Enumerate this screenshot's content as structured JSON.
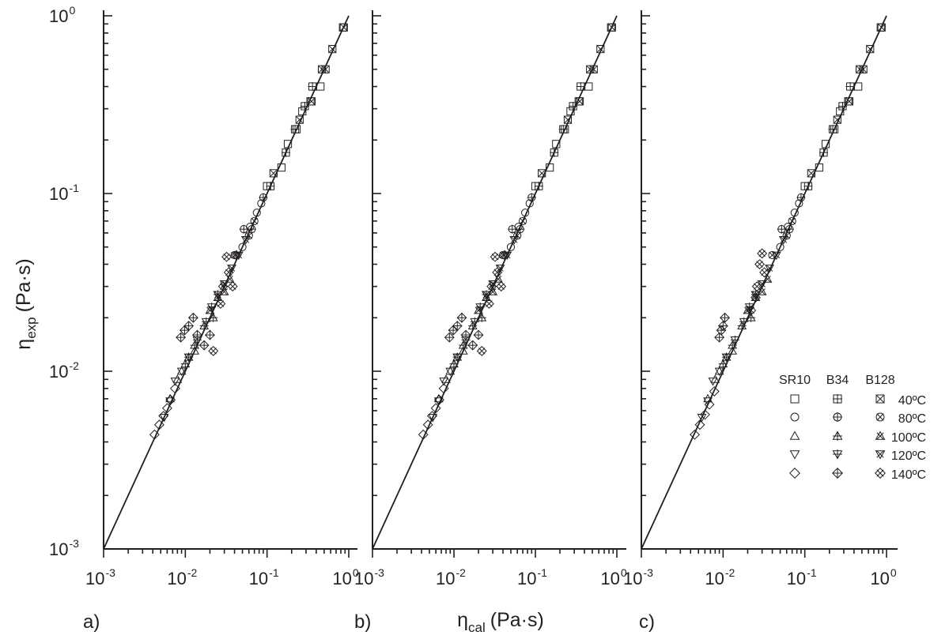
{
  "figure": {
    "y_axis_title": {
      "symbol": "η",
      "subscript": "exp",
      "unit": "(Pa·s)"
    },
    "x_axis_title": {
      "symbol": "η",
      "subscript": "cal",
      "unit": "(Pa·s)"
    },
    "panel_labels": [
      "a)",
      "b)",
      "c)"
    ],
    "tick_base": "10",
    "y_tick_exponents": [
      "0",
      "-1",
      "-2",
      "-3"
    ],
    "x_tick_exponents": [
      "-3",
      "-2",
      "-1",
      "0"
    ],
    "legend": {
      "columns": [
        "SR10",
        "B34",
        "B128"
      ],
      "rows": [
        "40ºC",
        "80ºC",
        "100ºC",
        "120ºC",
        "140ºC"
      ],
      "marker_shapes": [
        "square",
        "circle",
        "triangle-up",
        "triangle-down",
        "diamond"
      ],
      "column_styles": [
        "open",
        "plus",
        "cross"
      ]
    },
    "colors": {
      "ink": "#231f20",
      "background": "#ffffff"
    }
  },
  "chart_data": [
    {
      "type": "scatter",
      "panel": "a)",
      "xlabel": "ηcal (Pa·s)",
      "ylabel": "ηexp (Pa·s)",
      "xscale": "log",
      "yscale": "log",
      "xlim": [
        0.001,
        1.5
      ],
      "ylim": [
        0.001,
        1.0
      ],
      "fit_line": {
        "x": [
          0.001,
          1.0
        ],
        "y": [
          0.001,
          1.0
        ]
      },
      "series": [
        {
          "shape": "square",
          "style": "open",
          "x": [
            0.1,
            0.15,
            0.18,
            0.23,
            0.27,
            0.34,
            0.45,
            0.85
          ],
          "y": [
            0.11,
            0.14,
            0.19,
            0.23,
            0.29,
            0.33,
            0.4,
            0.86
          ]
        },
        {
          "shape": "square",
          "style": "plus",
          "x": [
            0.11,
            0.17,
            0.22,
            0.29,
            0.36
          ],
          "y": [
            0.11,
            0.17,
            0.23,
            0.31,
            0.4
          ]
        },
        {
          "shape": "square",
          "style": "cross",
          "x": [
            0.12,
            0.25,
            0.35,
            0.47,
            0.52,
            0.63,
            0.87
          ],
          "y": [
            0.13,
            0.26,
            0.33,
            0.5,
            0.5,
            0.65,
            0.86
          ]
        },
        {
          "shape": "circle",
          "style": "open",
          "x": [
            0.05,
            0.062,
            0.075,
            0.085
          ],
          "y": [
            0.05,
            0.065,
            0.078,
            0.088
          ]
        },
        {
          "shape": "circle",
          "style": "plus",
          "x": [
            0.052,
            0.065,
            0.09
          ],
          "y": [
            0.063,
            0.063,
            0.095
          ]
        },
        {
          "shape": "circle",
          "style": "cross",
          "x": [
            0.04,
            0.06,
            0.07
          ],
          "y": [
            0.045,
            0.058,
            0.07
          ]
        },
        {
          "shape": "triangle-up",
          "style": "open",
          "x": [
            0.0065,
            0.008,
            0.009,
            0.011,
            0.013
          ],
          "y": [
            0.007,
            0.009,
            0.01,
            0.012,
            0.013
          ]
        },
        {
          "shape": "triangle-up",
          "style": "plus",
          "x": [
            0.01,
            0.013,
            0.017,
            0.022
          ],
          "y": [
            0.011,
            0.014,
            0.018,
            0.02
          ]
        },
        {
          "shape": "triangle-up",
          "style": "cross",
          "x": [
            0.02,
            0.025,
            0.03,
            0.035
          ],
          "y": [
            0.022,
            0.026,
            0.028,
            0.033
          ]
        },
        {
          "shape": "triangle-down",
          "style": "open",
          "x": [
            0.0055,
            0.0065,
            0.0075,
            0.009,
            0.011
          ],
          "y": [
            0.0055,
            0.0068,
            0.0088,
            0.01,
            0.012
          ]
        },
        {
          "shape": "triangle-down",
          "style": "plus",
          "x": [
            0.011,
            0.014,
            0.018,
            0.021,
            0.025
          ],
          "y": [
            0.012,
            0.015,
            0.019,
            0.023,
            0.027
          ]
        },
        {
          "shape": "triangle-down",
          "style": "cross",
          "x": [
            0.025,
            0.03,
            0.037,
            0.045,
            0.055
          ],
          "y": [
            0.027,
            0.031,
            0.038,
            0.045,
            0.055
          ]
        },
        {
          "shape": "diamond",
          "style": "open",
          "x": [
            0.0042,
            0.0048,
            0.0054,
            0.006,
            0.0066,
            0.0075
          ],
          "y": [
            0.0044,
            0.005,
            0.0056,
            0.0062,
            0.0069,
            0.008
          ]
        },
        {
          "shape": "diamond",
          "style": "plus",
          "x": [
            0.0088,
            0.0098,
            0.011,
            0.0125,
            0.014,
            0.017,
            0.02
          ],
          "y": [
            0.0155,
            0.017,
            0.018,
            0.02,
            0.016,
            0.014,
            0.016
          ]
        },
        {
          "shape": "diamond",
          "style": "cross",
          "x": [
            0.022,
            0.027,
            0.029,
            0.032,
            0.034,
            0.038,
            0.042
          ],
          "y": [
            0.013,
            0.024,
            0.03,
            0.044,
            0.036,
            0.03,
            0.045
          ]
        }
      ]
    },
    {
      "type": "scatter",
      "panel": "b)",
      "xlabel": "ηcal (Pa·s)",
      "ylabel": "ηexp (Pa·s)",
      "xscale": "log",
      "yscale": "log",
      "xlim": [
        0.001,
        1.5
      ],
      "ylim": [
        0.001,
        1.0
      ],
      "fit_line": {
        "x": [
          0.001,
          1.0
        ],
        "y": [
          0.001,
          1.0
        ]
      },
      "series": [
        {
          "shape": "square",
          "style": "open",
          "x": [
            0.1,
            0.15,
            0.18,
            0.23,
            0.27,
            0.34,
            0.45,
            0.85
          ],
          "y": [
            0.11,
            0.14,
            0.19,
            0.23,
            0.29,
            0.33,
            0.4,
            0.86
          ]
        },
        {
          "shape": "square",
          "style": "plus",
          "x": [
            0.11,
            0.17,
            0.22,
            0.29,
            0.36
          ],
          "y": [
            0.11,
            0.17,
            0.23,
            0.31,
            0.4
          ]
        },
        {
          "shape": "square",
          "style": "cross",
          "x": [
            0.12,
            0.25,
            0.35,
            0.47,
            0.52,
            0.63,
            0.87
          ],
          "y": [
            0.13,
            0.26,
            0.33,
            0.5,
            0.5,
            0.65,
            0.86
          ]
        },
        {
          "shape": "circle",
          "style": "open",
          "x": [
            0.05,
            0.062,
            0.075,
            0.085
          ],
          "y": [
            0.05,
            0.065,
            0.078,
            0.088
          ]
        },
        {
          "shape": "circle",
          "style": "plus",
          "x": [
            0.052,
            0.065,
            0.09
          ],
          "y": [
            0.063,
            0.063,
            0.095
          ]
        },
        {
          "shape": "circle",
          "style": "cross",
          "x": [
            0.04,
            0.06,
            0.07
          ],
          "y": [
            0.045,
            0.058,
            0.07
          ]
        },
        {
          "shape": "triangle-up",
          "style": "open",
          "x": [
            0.0065,
            0.008,
            0.009,
            0.011,
            0.013
          ],
          "y": [
            0.007,
            0.009,
            0.01,
            0.012,
            0.013
          ]
        },
        {
          "shape": "triangle-up",
          "style": "plus",
          "x": [
            0.01,
            0.013,
            0.017,
            0.022
          ],
          "y": [
            0.011,
            0.014,
            0.018,
            0.02
          ]
        },
        {
          "shape": "triangle-up",
          "style": "cross",
          "x": [
            0.02,
            0.025,
            0.03,
            0.035
          ],
          "y": [
            0.022,
            0.026,
            0.028,
            0.033
          ]
        },
        {
          "shape": "triangle-down",
          "style": "open",
          "x": [
            0.0055,
            0.0065,
            0.0075,
            0.009,
            0.011
          ],
          "y": [
            0.0055,
            0.0068,
            0.0088,
            0.01,
            0.012
          ]
        },
        {
          "shape": "triangle-down",
          "style": "plus",
          "x": [
            0.011,
            0.014,
            0.018,
            0.021,
            0.025
          ],
          "y": [
            0.012,
            0.015,
            0.019,
            0.023,
            0.027
          ]
        },
        {
          "shape": "triangle-down",
          "style": "cross",
          "x": [
            0.025,
            0.03,
            0.037,
            0.045,
            0.055
          ],
          "y": [
            0.027,
            0.031,
            0.038,
            0.045,
            0.055
          ]
        },
        {
          "shape": "diamond",
          "style": "open",
          "x": [
            0.0042,
            0.0048,
            0.0054,
            0.006,
            0.0066,
            0.0075
          ],
          "y": [
            0.0044,
            0.005,
            0.0056,
            0.0062,
            0.0069,
            0.008
          ]
        },
        {
          "shape": "diamond",
          "style": "plus",
          "x": [
            0.0088,
            0.0098,
            0.011,
            0.0125,
            0.014,
            0.017,
            0.02
          ],
          "y": [
            0.0155,
            0.017,
            0.018,
            0.02,
            0.016,
            0.014,
            0.016
          ]
        },
        {
          "shape": "diamond",
          "style": "cross",
          "x": [
            0.022,
            0.027,
            0.029,
            0.032,
            0.034,
            0.038,
            0.042
          ],
          "y": [
            0.013,
            0.024,
            0.03,
            0.044,
            0.036,
            0.03,
            0.045
          ]
        }
      ]
    },
    {
      "type": "scatter",
      "panel": "c)",
      "xlabel": "ηcal (Pa·s)",
      "ylabel": "ηexp (Pa·s)",
      "xscale": "log",
      "yscale": "log",
      "xlim": [
        0.001,
        1.5
      ],
      "ylim": [
        0.001,
        1.0
      ],
      "fit_line": {
        "x": [
          0.001,
          1.0
        ],
        "y": [
          0.001,
          1.0
        ]
      },
      "series": [
        {
          "shape": "square",
          "style": "open",
          "x": [
            0.1,
            0.15,
            0.18,
            0.23,
            0.27,
            0.34,
            0.45,
            0.85
          ],
          "y": [
            0.11,
            0.14,
            0.19,
            0.23,
            0.29,
            0.33,
            0.4,
            0.86
          ]
        },
        {
          "shape": "square",
          "style": "plus",
          "x": [
            0.11,
            0.17,
            0.22,
            0.29,
            0.36
          ],
          "y": [
            0.11,
            0.17,
            0.23,
            0.31,
            0.4
          ]
        },
        {
          "shape": "square",
          "style": "cross",
          "x": [
            0.12,
            0.25,
            0.35,
            0.47,
            0.52,
            0.63,
            0.87
          ],
          "y": [
            0.13,
            0.26,
            0.33,
            0.5,
            0.5,
            0.65,
            0.86
          ]
        },
        {
          "shape": "circle",
          "style": "open",
          "x": [
            0.05,
            0.062,
            0.075,
            0.085
          ],
          "y": [
            0.05,
            0.065,
            0.078,
            0.088
          ]
        },
        {
          "shape": "circle",
          "style": "plus",
          "x": [
            0.052,
            0.065,
            0.09
          ],
          "y": [
            0.063,
            0.063,
            0.095
          ]
        },
        {
          "shape": "circle",
          "style": "cross",
          "x": [
            0.04,
            0.06,
            0.07
          ],
          "y": [
            0.045,
            0.058,
            0.07
          ]
        },
        {
          "shape": "triangle-up",
          "style": "open",
          "x": [
            0.0065,
            0.008,
            0.009,
            0.011,
            0.013
          ],
          "y": [
            0.007,
            0.009,
            0.01,
            0.012,
            0.013
          ]
        },
        {
          "shape": "triangle-up",
          "style": "plus",
          "x": [
            0.01,
            0.013,
            0.017,
            0.022
          ],
          "y": [
            0.011,
            0.014,
            0.018,
            0.02
          ]
        },
        {
          "shape": "triangle-up",
          "style": "cross",
          "x": [
            0.02,
            0.025,
            0.03,
            0.035
          ],
          "y": [
            0.022,
            0.026,
            0.028,
            0.033
          ]
        },
        {
          "shape": "triangle-down",
          "style": "open",
          "x": [
            0.0055,
            0.0065,
            0.0075,
            0.009,
            0.011
          ],
          "y": [
            0.0055,
            0.0068,
            0.0088,
            0.01,
            0.012
          ]
        },
        {
          "shape": "triangle-down",
          "style": "plus",
          "x": [
            0.011,
            0.014,
            0.018,
            0.021,
            0.025
          ],
          "y": [
            0.012,
            0.015,
            0.019,
            0.023,
            0.027
          ]
        },
        {
          "shape": "triangle-down",
          "style": "cross",
          "x": [
            0.025,
            0.03,
            0.037,
            0.045,
            0.055
          ],
          "y": [
            0.027,
            0.031,
            0.038,
            0.045,
            0.055
          ]
        },
        {
          "shape": "diamond",
          "style": "open",
          "x": [
            0.0045,
            0.0052,
            0.006,
            0.0068,
            0.0078
          ],
          "y": [
            0.0044,
            0.005,
            0.0057,
            0.0065,
            0.0077
          ]
        },
        {
          "shape": "diamond",
          "style": "plus",
          "x": [
            0.009,
            0.0095,
            0.01,
            0.0105
          ],
          "y": [
            0.0155,
            0.017,
            0.018,
            0.02
          ]
        },
        {
          "shape": "diamond",
          "style": "cross",
          "x": [
            0.022,
            0.025,
            0.026,
            0.028,
            0.03,
            0.032
          ],
          "y": [
            0.022,
            0.026,
            0.03,
            0.04,
            0.046,
            0.036
          ]
        }
      ]
    }
  ]
}
